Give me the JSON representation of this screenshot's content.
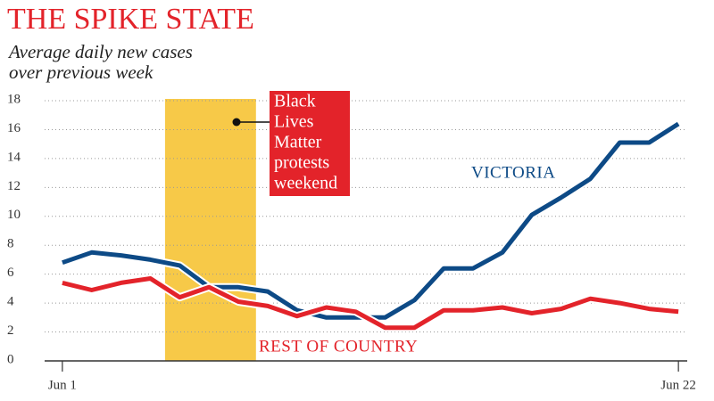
{
  "chart_data": {
    "type": "line",
    "title": "THE SPIKE STATE",
    "subtitle": [
      "Average daily new cases",
      "over previous week"
    ],
    "x": [
      1,
      2,
      3,
      4,
      5,
      6,
      7,
      8,
      9,
      10,
      11,
      12,
      13,
      14,
      15,
      16,
      17,
      18,
      19,
      20,
      21,
      22
    ],
    "xlim": [
      0.7,
      22.3
    ],
    "xticks": [
      {
        "value": 1,
        "label": "Jun 1"
      },
      {
        "value": 22,
        "label": "Jun 22"
      }
    ],
    "ylim": [
      0,
      18
    ],
    "yticks": [
      0,
      2,
      4,
      6,
      8,
      10,
      12,
      14,
      16,
      18
    ],
    "grid": true,
    "series": [
      {
        "name": "VICTORIA",
        "color": "#0d4a86",
        "values": [
          6.8,
          7.5,
          7.3,
          7.0,
          6.6,
          5.1,
          5.1,
          4.8,
          3.5,
          3.0,
          3.0,
          3.0,
          4.2,
          6.4,
          6.4,
          7.5,
          10.1,
          11.3,
          12.6,
          15.1,
          15.1,
          16.4
        ]
      },
      {
        "name": "REST OF COUNTRY",
        "color": "#e3232a",
        "values": [
          5.4,
          4.9,
          5.4,
          5.7,
          4.4,
          5.1,
          4.1,
          3.8,
          3.1,
          3.7,
          3.4,
          2.3,
          2.3,
          3.5,
          3.5,
          3.7,
          3.3,
          3.6,
          4.3,
          4.0,
          3.6,
          3.4
        ]
      }
    ],
    "highlight": {
      "x": [
        4.5,
        7.6
      ],
      "color": "#f7c948"
    },
    "annotation": {
      "lines": [
        "Black",
        "Lives",
        "Matter",
        "protests",
        "weekend"
      ],
      "color": "#e3232a"
    }
  }
}
